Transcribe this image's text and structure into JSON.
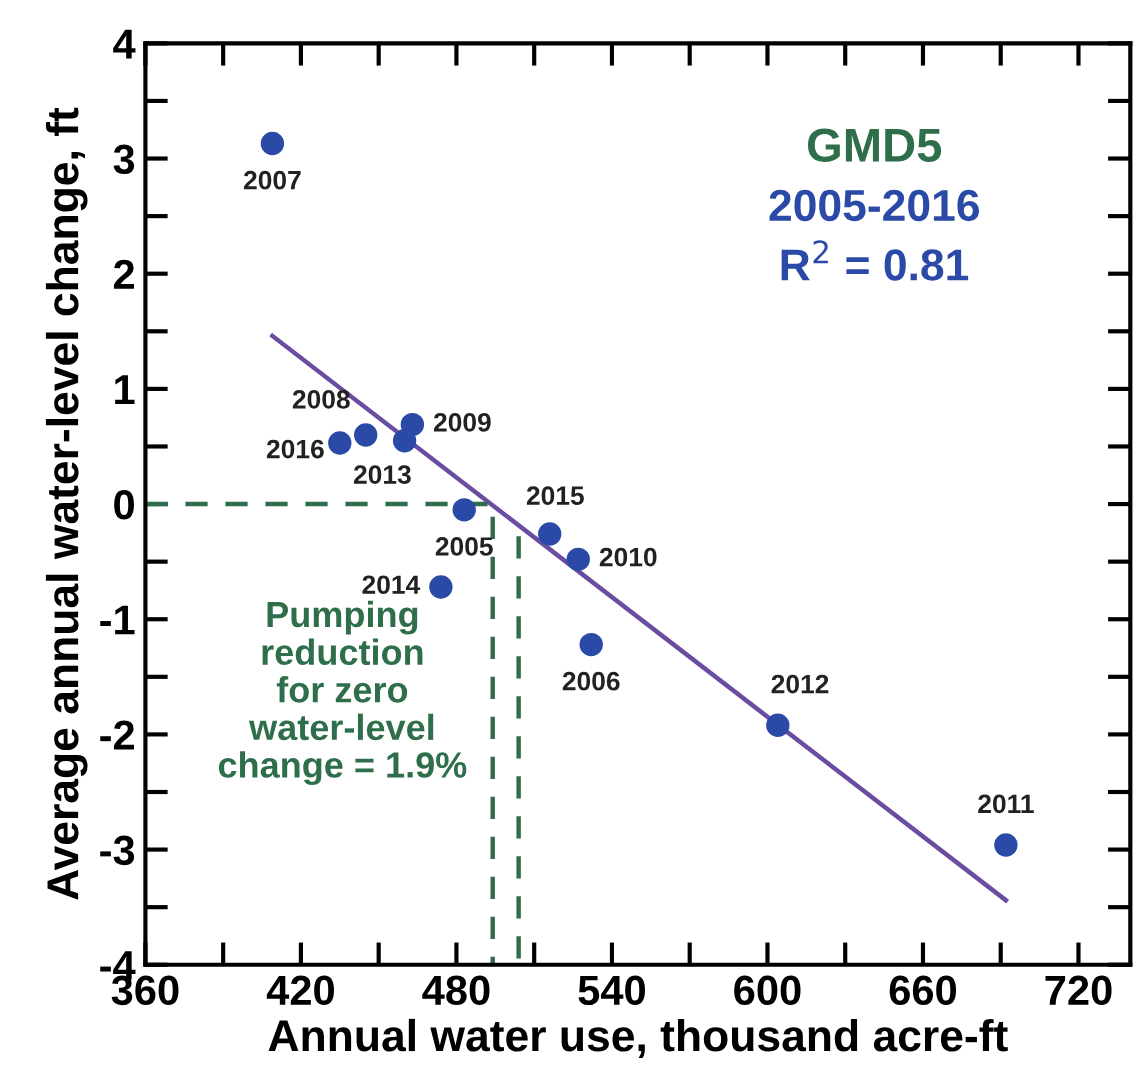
{
  "chart_data": {
    "type": "scatter",
    "xlabel": "Annual water use, thousand acre-ft",
    "ylabel": "Average annual water-level change, ft",
    "xlim": [
      360,
      740
    ],
    "ylim": [
      -4,
      4
    ],
    "xticks": [
      360,
      {
        "value": 390,
        "label": null
      },
      420,
      {
        "value": 450,
        "label": null
      },
      480,
      {
        "value": 510,
        "label": null
      },
      540,
      {
        "value": 570,
        "label": null
      },
      600,
      {
        "value": 630,
        "label": null
      },
      660,
      {
        "value": 690,
        "label": null
      },
      720
    ],
    "yticks": [
      -4,
      {
        "value": -3.5,
        "label": null
      },
      -3,
      {
        "value": -2.5,
        "label": null
      },
      -2,
      {
        "value": -1.5,
        "label": null
      },
      -1,
      {
        "value": -0.5,
        "label": null
      },
      0,
      {
        "value": 0.5,
        "label": null
      },
      1,
      {
        "value": 1.5,
        "label": null
      },
      2,
      {
        "value": 2.5,
        "label": null
      },
      3,
      {
        "value": 3.5,
        "label": null
      },
      4
    ],
    "grid": false,
    "series": [
      {
        "type": "line",
        "color": "#6a4ca0",
        "line_style": "solid",
        "marker": "none",
        "x": [
          409,
          692
        ],
        "values": [
          1.46,
          -3.44
        ]
      },
      {
        "type": "line",
        "color": "#2e6e4a",
        "line_style": "dashed",
        "marker": "none",
        "x": [
          360,
          494,
          494
        ],
        "values": [
          0,
          0,
          -4
        ]
      },
      {
        "type": "line",
        "color": "#2e6e4a",
        "line_style": "dashed",
        "marker": "none",
        "x": [
          504,
          504
        ],
        "values": [
          -0.28,
          -4
        ]
      },
      {
        "color": "#2b4aa8",
        "marker": "circle",
        "x": [
          483,
          532,
          409,
          445,
          463,
          527,
          692,
          604,
          460,
          474,
          516,
          435
        ],
        "values": [
          -0.05,
          -1.22,
          3.13,
          0.6,
          0.69,
          -0.48,
          -2.96,
          -1.92,
          0.55,
          -0.72,
          -0.26,
          0.53
        ]
      }
    ],
    "annotations": [
      "GMD5",
      "2005-2016",
      "R$^{2}$ = 0.81",
      "Pumping\nreduction\nfor zero\nwater-level\nchange = 1.9%",
      {
        "text": "2005",
        "x": 483,
        "y": -0.05
      },
      {
        "text": "2006",
        "x": 532,
        "y": -1.22
      },
      {
        "text": "2007",
        "x": 409,
        "y": 3.13
      },
      {
        "text": "2008",
        "x": 445,
        "y": 0.6
      },
      {
        "text": "2009",
        "x": 463,
        "y": 0.69
      },
      {
        "text": "2010",
        "x": 527,
        "y": -0.48
      },
      {
        "text": "2011",
        "x": 692,
        "y": -2.96
      },
      {
        "text": "2012",
        "x": 604,
        "y": -1.92
      },
      {
        "text": "2013",
        "x": 460,
        "y": 0.55
      },
      {
        "text": "2014",
        "x": 474,
        "y": -0.72
      },
      {
        "text": "2015",
        "x": 516,
        "y": -0.26
      },
      {
        "text": "2016",
        "x": 435,
        "y": 0.53
      }
    ]
  }
}
